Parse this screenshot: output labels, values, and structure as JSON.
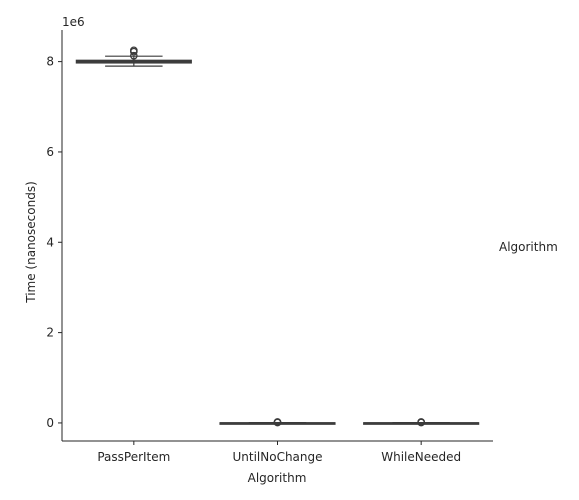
{
  "chart_data": {
    "type": "box",
    "xlabel": "Algorithm",
    "ylabel": "Time (nanoseconds)",
    "y_exponent_label": "1e6",
    "y_scale_factor": 1000000,
    "ylim": [
      -400000,
      8700000
    ],
    "yticks": [
      0,
      2000000,
      4000000,
      6000000,
      8000000
    ],
    "ytick_labels": [
      "0",
      "2",
      "4",
      "6",
      "8"
    ],
    "legend_title": "Algorithm",
    "legend_placement": "right",
    "grid": false,
    "box_color": "#3b3b3b",
    "categories": [
      "PassPerItem",
      "UntilNoChange",
      "WhileNeeded"
    ],
    "boxes": [
      {
        "category": "PassPerItem",
        "whisker_low": 7900000,
        "q1": 7970000,
        "median": 8000000,
        "q3": 8030000,
        "whisker_high": 8120000,
        "outliers": [
          8130000,
          8220000,
          8250000
        ]
      },
      {
        "category": "UntilNoChange",
        "whisker_low": 0,
        "q1": 0,
        "median": 2000,
        "q3": 4000,
        "whisker_high": 8000,
        "outliers": [
          10000,
          15000,
          20000
        ]
      },
      {
        "category": "WhileNeeded",
        "whisker_low": 0,
        "q1": 0,
        "median": 2000,
        "q3": 4000,
        "whisker_high": 8000,
        "outliers": [
          10000,
          15000,
          20000
        ]
      }
    ]
  }
}
